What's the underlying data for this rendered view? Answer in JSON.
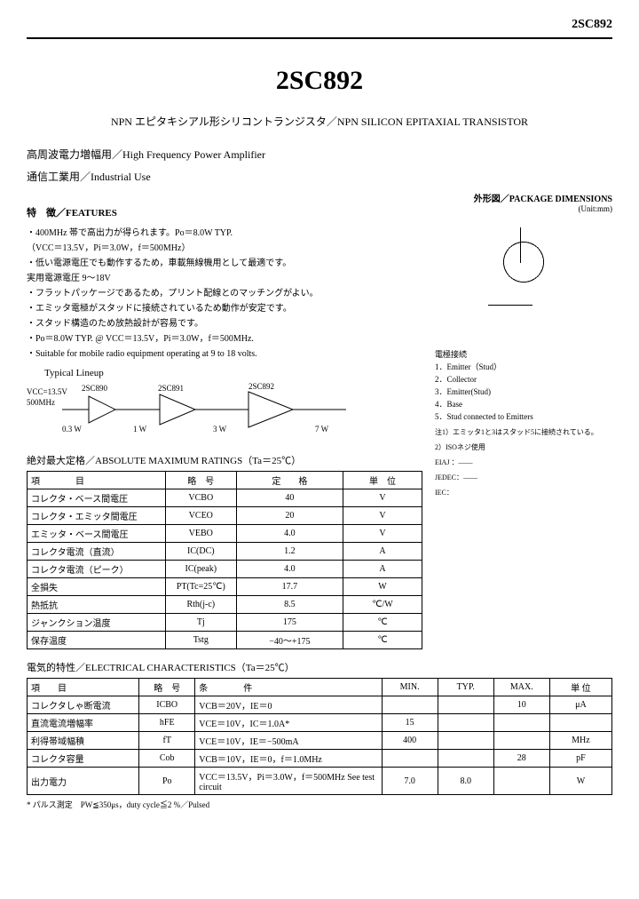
{
  "header": {
    "part": "2SC892"
  },
  "title": "2SC892",
  "subtitle": "NPN エピタキシアル形シリコントランジスタ／NPN SILICON EPITAXIAL TRANSISTOR",
  "lines": {
    "l1": "高周波電力増幅用／High Frequency Power Amplifier",
    "l2": "通信工業用／Industrial Use"
  },
  "features": {
    "head": "特　徴／FEATURES",
    "items": [
      "・400MHz 帯で高出力が得られます。Po＝8.0W TYP.",
      "（VCC＝13.5V，Pi＝3.0W，f＝500MHz）",
      "・低い電源電圧でも動作するため，車載無線機用として最適です。",
      "実用電源電圧 9～18V",
      "・フラットパッケージであるため，プリント配線とのマッチングがよい。",
      "・エミッタ電極がスタッドに接続されているため動作が安定です。",
      "・スタッド構造のため放熱設計が容易です。",
      "・Po＝8.0W TYP.  @  VCC＝13.5V，Pi＝3.0W，f＝500MHz.",
      "・Suitable for mobile radio equipment operating at 9 to 18 volts."
    ]
  },
  "lineup": {
    "title": "Typical Lineup",
    "vcc": "VCC=13.5V",
    "freq": "500MHz",
    "stages": [
      {
        "part": "2SC890",
        "in": "0.3 W",
        "out": "1 W"
      },
      {
        "part": "2SC891",
        "out": "3 W"
      },
      {
        "part": "2SC892",
        "out": "7 W"
      }
    ]
  },
  "package": {
    "head": "外形図／PACKAGE DIMENSIONS",
    "unit": "(Unit:mm)",
    "labelhead": "電極接続",
    "labels": [
      "1．Emitter（Stud）",
      "2．Collector",
      "3．Emitter(Stud)",
      "4．Base",
      "5．Stud connected to Emitters"
    ],
    "note1": "注1）エミッタ1と3はスタッド5に接続されている。",
    "note2": "2）ISOネジ使用",
    "std": {
      "eiaj": "EIAJ ：——",
      "jedec": "JEDEC：——",
      "iec": "IEC："
    }
  },
  "abs": {
    "head": "絶対最大定格／ABSOLUTE MAXIMUM RATINGS（Ta＝25℃）",
    "cols": [
      "項　　　　目",
      "略　号",
      "定　　格",
      "単　位"
    ],
    "rows": [
      [
        "コレクタ・ベース間電圧",
        "VCBO",
        "40",
        "V"
      ],
      [
        "コレクタ・エミッタ間電圧",
        "VCEO",
        "20",
        "V"
      ],
      [
        "エミッタ・ベース間電圧",
        "VEBO",
        "4.0",
        "V"
      ],
      [
        "コレクタ電流（直流）",
        "IC(DC)",
        "1.2",
        "A"
      ],
      [
        "コレクタ電流（ピーク）",
        "IC(peak)",
        "4.0",
        "A"
      ],
      [
        "全損失",
        "PT(Tc=25℃)",
        "17.7",
        "W"
      ],
      [
        "熱抵抗",
        "Rth(j-c)",
        "8.5",
        "℃/W"
      ],
      [
        "ジャンクション温度",
        "Tj",
        "175",
        "℃"
      ],
      [
        "保存温度",
        "Tstg",
        "−40～+175",
        "℃"
      ]
    ]
  },
  "elec": {
    "head": "電気的特性／ELECTRICAL CHARACTERISTICS（Ta＝25℃）",
    "cols": [
      "項　　目",
      "略　号",
      "条　　　　件",
      "MIN.",
      "TYP.",
      "MAX.",
      "単 位"
    ],
    "rows": [
      [
        "コレクタしゃ断電流",
        "ICBO",
        "VCB＝20V，IE＝0",
        "",
        "",
        "10",
        "μA"
      ],
      [
        "直流電流増幅率",
        "hFE",
        "VCE＝10V，IC＝1.0A*",
        "15",
        "",
        "",
        ""
      ],
      [
        "利得帯域幅積",
        "fT",
        "VCE＝10V，IE＝−500mA",
        "400",
        "",
        "",
        "MHz"
      ],
      [
        "コレクタ容量",
        "Cob",
        "VCB＝10V，IE＝0，f＝1.0MHz",
        "",
        "",
        "28",
        "pF"
      ],
      [
        "出力電力",
        "Po",
        "VCC＝13.5V，Pi＝3.0W，f＝500MHz See test circuit",
        "7.0",
        "8.0",
        "",
        "W"
      ]
    ]
  },
  "footnote": "* パルス測定　PW≦350μs，duty cycle≦2 %／Pulsed"
}
